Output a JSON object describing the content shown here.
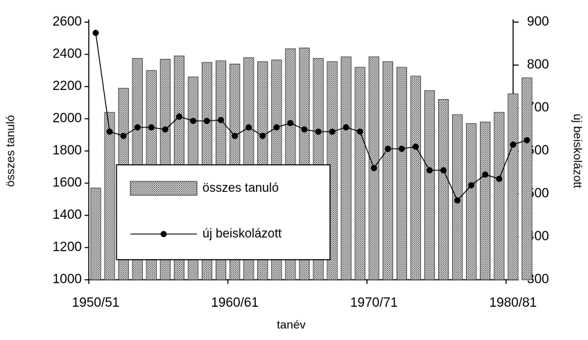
{
  "chart_data": {
    "type": "bar_line",
    "categories": [
      "1950/51",
      null,
      null,
      null,
      null,
      null,
      null,
      null,
      null,
      null,
      "1960/61",
      null,
      null,
      null,
      null,
      null,
      null,
      null,
      null,
      null,
      "1970/71",
      null,
      null,
      null,
      null,
      null,
      null,
      null,
      null,
      null,
      "1980/81",
      null
    ],
    "series": [
      {
        "name": "összes tanuló",
        "color": "#a0a0a0",
        "type": "bar",
        "values": [
          1570,
          2040,
          2190,
          2375,
          2300,
          2370,
          2390,
          2260,
          2350,
          2360,
          2340,
          2380,
          2355,
          2365,
          2435,
          2440,
          2375,
          2355,
          2385,
          2320,
          2385,
          2355,
          2320,
          2265,
          2175,
          2120,
          2025,
          1970,
          1980,
          2040,
          2155,
          2255
        ]
      },
      {
        "name": "új beiskolázott",
        "color": "#000000",
        "type": "line",
        "axis": "y2",
        "values": [
          875,
          645,
          635,
          655,
          655,
          650,
          680,
          670,
          670,
          672,
          635,
          655,
          635,
          655,
          665,
          650,
          645,
          645,
          655,
          645,
          560,
          605,
          605,
          610,
          555,
          555,
          485,
          520,
          545,
          535,
          615,
          625
        ]
      }
    ],
    "xlabel": "tanév",
    "ylabel": "összes tanuló",
    "y2label": "új beiskolázott",
    "ylim": [
      1000,
      2600
    ],
    "yticks": [
      1000,
      1200,
      1400,
      1600,
      1800,
      2000,
      2200,
      2400,
      2600
    ],
    "y2lim": [
      300,
      900
    ],
    "y2ticks": [
      300,
      400,
      500,
      600,
      700,
      800,
      900
    ],
    "legend": "center-left"
  }
}
